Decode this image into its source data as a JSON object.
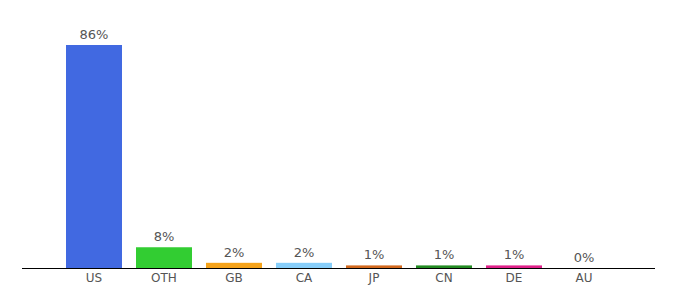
{
  "chart_data": {
    "type": "bar",
    "categories": [
      "US",
      "OTH",
      "GB",
      "CA",
      "JP",
      "CN",
      "DE",
      "AU"
    ],
    "values": [
      86,
      8,
      2,
      2,
      1,
      1,
      1,
      0
    ],
    "value_labels": [
      "86%",
      "8%",
      "2%",
      "2%",
      "1%",
      "1%",
      "1%",
      "0%"
    ],
    "colors": [
      "#4169e1",
      "#32cd32",
      "#f5a31a",
      "#87cefa",
      "#d2691e",
      "#228b22",
      "#e0218a",
      "#9370db"
    ],
    "data_labels": true,
    "tick_labels": "x"
  }
}
